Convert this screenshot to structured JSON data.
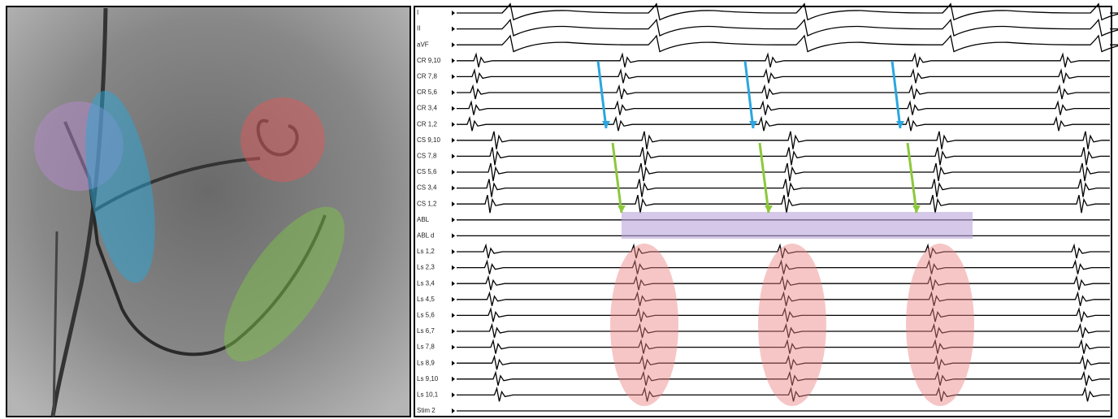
{
  "channels": [
    "I",
    "II",
    "aVF",
    "CR 9,10",
    "CR 7,8",
    "CR 5,6",
    "CR 3,4",
    "CR 1,2",
    "CS 9,10",
    "CS 7,8",
    "CS 5,6",
    "CS 3,4",
    "CS 1,2",
    "ABL",
    "ABL d",
    "Ls 1,2",
    "Ls 2,3",
    "Ls 3,4",
    "Ls 4,5",
    "Ls 5,6",
    "Ls 6,7",
    "Ls 7,8",
    "Ls 8,9",
    "Ls 9,10",
    "Ls 10,1",
    "Stim 2"
  ]
}
